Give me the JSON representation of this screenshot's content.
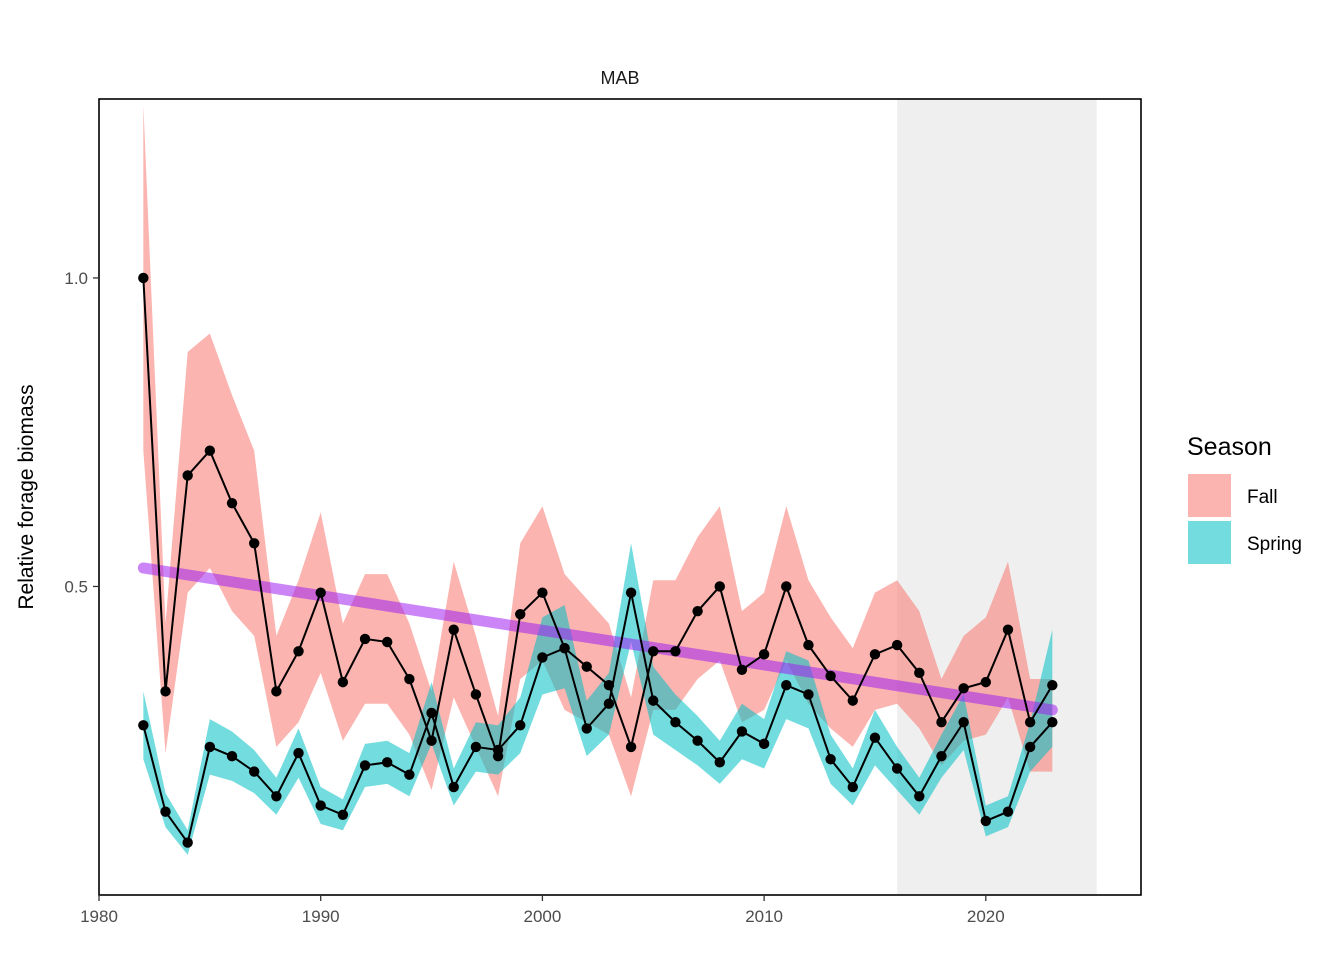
{
  "chart_data": {
    "type": "line",
    "title": "MAB",
    "xlabel": "",
    "ylabel": "Relative forage biomass",
    "xlim": [
      1980,
      2027
    ],
    "ylim": [
      0.0,
      1.29
    ],
    "x_ticks": [
      1980,
      1990,
      2000,
      2010,
      2020
    ],
    "y_ticks": [
      0.5,
      1.0
    ],
    "y_tick_labels": [
      "0.5",
      "1.0"
    ],
    "grid": false,
    "highlight_region": {
      "x_start": 2016,
      "x_end": 2025,
      "color": "#efefef"
    },
    "legend": {
      "title": "Season",
      "position": "right",
      "entries": [
        {
          "label": "Fall",
          "color": "#F8766D"
        },
        {
          "label": "Spring",
          "color": "#00BFC4"
        }
      ]
    },
    "trend": {
      "color": "#a020f0",
      "x": [
        1982,
        2023
      ],
      "y": [
        0.53,
        0.3
      ]
    },
    "x": [
      1982,
      1983,
      1984,
      1985,
      1986,
      1987,
      1988,
      1989,
      1990,
      1991,
      1992,
      1993,
      1994,
      1995,
      1996,
      1997,
      1998,
      1999,
      2000,
      2001,
      2002,
      2003,
      2004,
      2005,
      2006,
      2007,
      2008,
      2009,
      2010,
      2011,
      2012,
      2013,
      2014,
      2015,
      2016,
      2017,
      2018,
      2019,
      2020,
      2021,
      2022,
      2023
    ],
    "series": [
      {
        "name": "Fall",
        "color": "#F8766D",
        "values": [
          1.0,
          0.33,
          0.68,
          0.72,
          0.635,
          0.57,
          0.33,
          0.395,
          0.49,
          0.345,
          0.415,
          0.41,
          0.35,
          0.25,
          0.43,
          0.325,
          0.225,
          0.455,
          0.49,
          0.4,
          0.37,
          0.34,
          0.24,
          0.395,
          0.395,
          0.46,
          0.5,
          0.365,
          0.39,
          0.5,
          0.405,
          0.355,
          0.315,
          0.39,
          0.405,
          0.36,
          0.28,
          0.335,
          0.345,
          0.43,
          0.28,
          0.34
        ],
        "lower": [
          0.72,
          0.23,
          0.49,
          0.53,
          0.46,
          0.42,
          0.24,
          0.28,
          0.36,
          0.25,
          0.31,
          0.31,
          0.26,
          0.17,
          0.32,
          0.24,
          0.16,
          0.35,
          0.38,
          0.3,
          0.28,
          0.26,
          0.16,
          0.3,
          0.3,
          0.35,
          0.38,
          0.28,
          0.3,
          0.38,
          0.31,
          0.27,
          0.24,
          0.3,
          0.31,
          0.27,
          0.21,
          0.25,
          0.26,
          0.32,
          0.2,
          0.2
        ],
        "upper": [
          1.28,
          0.44,
          0.88,
          0.91,
          0.81,
          0.72,
          0.42,
          0.51,
          0.62,
          0.44,
          0.52,
          0.52,
          0.44,
          0.33,
          0.54,
          0.42,
          0.29,
          0.57,
          0.63,
          0.52,
          0.48,
          0.44,
          0.32,
          0.51,
          0.51,
          0.58,
          0.63,
          0.46,
          0.49,
          0.63,
          0.51,
          0.45,
          0.4,
          0.49,
          0.51,
          0.46,
          0.35,
          0.42,
          0.45,
          0.54,
          0.35,
          0.35
        ]
      },
      {
        "name": "Spring",
        "color": "#00BFC4",
        "values": [
          0.275,
          0.135,
          0.085,
          0.24,
          0.225,
          0.2,
          0.16,
          0.23,
          0.145,
          0.13,
          0.21,
          0.215,
          0.195,
          0.295,
          0.175,
          0.24,
          0.235,
          0.275,
          0.385,
          0.4,
          0.27,
          0.31,
          0.49,
          0.315,
          0.28,
          0.25,
          0.215,
          0.265,
          0.245,
          0.34,
          0.325,
          0.22,
          0.175,
          0.255,
          0.205,
          0.16,
          0.225,
          0.28,
          0.12,
          0.135,
          0.24,
          0.28
        ],
        "lower": [
          0.22,
          0.11,
          0.065,
          0.195,
          0.185,
          0.165,
          0.13,
          0.19,
          0.115,
          0.105,
          0.175,
          0.18,
          0.16,
          0.245,
          0.145,
          0.2,
          0.195,
          0.23,
          0.325,
          0.335,
          0.225,
          0.26,
          0.41,
          0.26,
          0.235,
          0.21,
          0.18,
          0.22,
          0.205,
          0.285,
          0.27,
          0.18,
          0.145,
          0.21,
          0.17,
          0.13,
          0.19,
          0.235,
          0.095,
          0.11,
          0.2,
          0.24
        ],
        "upper": [
          0.33,
          0.165,
          0.105,
          0.285,
          0.265,
          0.235,
          0.19,
          0.27,
          0.175,
          0.155,
          0.245,
          0.25,
          0.23,
          0.345,
          0.205,
          0.28,
          0.275,
          0.32,
          0.45,
          0.47,
          0.315,
          0.36,
          0.57,
          0.37,
          0.325,
          0.29,
          0.25,
          0.31,
          0.285,
          0.395,
          0.38,
          0.26,
          0.205,
          0.3,
          0.24,
          0.19,
          0.26,
          0.325,
          0.145,
          0.16,
          0.28,
          0.43
        ]
      }
    ]
  }
}
